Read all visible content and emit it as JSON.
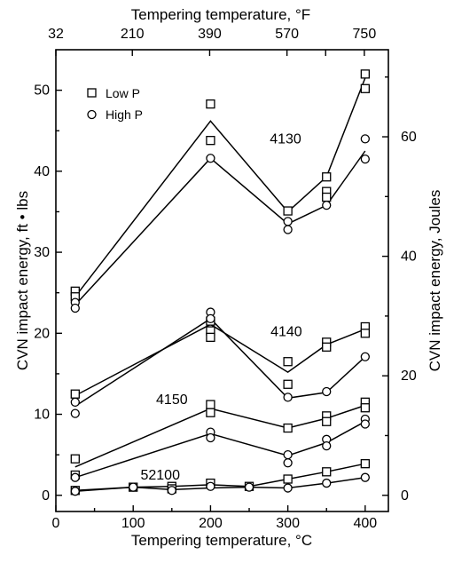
{
  "chart_data": {
    "type": "scatter",
    "xlabel": "Tempering temperature, °C",
    "x2label": "Tempering temperature, °F",
    "ylabel": "CVN impact energy, ft • lbs",
    "y2label": "CVN impact energy, Joules",
    "xlim": [
      0,
      430
    ],
    "ylim": [
      -2,
      55
    ],
    "y2lim": [
      -2.71,
      74.57
    ],
    "xticks": [
      0,
      100,
      200,
      300,
      400
    ],
    "xtick_labels": [
      "0",
      "100",
      "200",
      "300",
      "400"
    ],
    "yticks": [
      0,
      10,
      20,
      30,
      40,
      50
    ],
    "ytick_labels": [
      "0",
      "10",
      "20",
      "30",
      "40",
      "50"
    ],
    "x2ticks": [
      32,
      210,
      390,
      570,
      660,
      750
    ],
    "x2tick_labels": [
      "32",
      "210",
      "390",
      "570",
      "",
      "750"
    ],
    "y2ticks": [
      0,
      20,
      40,
      60
    ],
    "y2tick_labels": [
      "0",
      "20",
      "40",
      "60"
    ],
    "grid": false,
    "legend": {
      "position": "top-left",
      "entries": [
        {
          "label": "Low P",
          "marker": "square"
        },
        {
          "label": "High P",
          "marker": "circle"
        }
      ]
    },
    "steels": [
      {
        "name": "4130",
        "label_pos": [
          297,
          44
        ],
        "low_p": {
          "points": [
            [
              25,
              25.2
            ],
            [
              25,
              24.5
            ],
            [
              200,
              48.3
            ],
            [
              200,
              43.8
            ],
            [
              300,
              35.1
            ],
            [
              350,
              39.3
            ],
            [
              350,
              37.5
            ],
            [
              350,
              36.8
            ],
            [
              400,
              52.0
            ],
            [
              400,
              50.2
            ]
          ],
          "line": [
            [
              25,
              24.5
            ],
            [
              200,
              46.2
            ],
            [
              300,
              35.0
            ],
            [
              350,
              39.3
            ],
            [
              400,
              51.5
            ]
          ]
        },
        "high_p": {
          "points": [
            [
              25,
              23.8
            ],
            [
              25,
              23.1
            ],
            [
              200,
              41.6
            ],
            [
              300,
              33.8
            ],
            [
              300,
              32.8
            ],
            [
              350,
              35.8
            ],
            [
              400,
              44.0
            ],
            [
              400,
              41.5
            ]
          ],
          "line": [
            [
              25,
              23.5
            ],
            [
              200,
              41.6
            ],
            [
              300,
              33.5
            ],
            [
              350,
              35.8
            ],
            [
              400,
              42.5
            ]
          ]
        }
      },
      {
        "name": "4140",
        "label_pos": [
          298,
          20.2
        ],
        "low_p": {
          "points": [
            [
              25,
              12.5
            ],
            [
              200,
              21.5
            ],
            [
              200,
              20.3
            ],
            [
              200,
              19.5
            ],
            [
              300,
              16.5
            ],
            [
              300,
              13.7
            ],
            [
              350,
              18.9
            ],
            [
              350,
              18.3
            ],
            [
              400,
              20.8
            ],
            [
              400,
              20.0
            ]
          ],
          "line": [
            [
              25,
              12.3
            ],
            [
              200,
              21.1
            ],
            [
              300,
              15.2
            ],
            [
              350,
              18.6
            ],
            [
              400,
              20.5
            ]
          ]
        },
        "high_p": {
          "points": [
            [
              25,
              11.5
            ],
            [
              25,
              10.1
            ],
            [
              200,
              22.6
            ],
            [
              200,
              21.8
            ],
            [
              300,
              12.1
            ],
            [
              350,
              12.8
            ],
            [
              400,
              17.1
            ]
          ],
          "line": [
            [
              25,
              11.0
            ],
            [
              200,
              21.8
            ],
            [
              300,
              12.0
            ],
            [
              350,
              12.7
            ],
            [
              400,
              17.1
            ]
          ]
        }
      },
      {
        "name": "4150",
        "label_pos": [
          150,
          11.8
        ],
        "low_p": {
          "points": [
            [
              25,
              4.5
            ],
            [
              25,
              2.5
            ],
            [
              200,
              11.2
            ],
            [
              200,
              10.2
            ],
            [
              300,
              8.3
            ],
            [
              350,
              9.8
            ],
            [
              350,
              9.1
            ],
            [
              400,
              11.5
            ],
            [
              400,
              10.8
            ]
          ],
          "line": [
            [
              25,
              3.5
            ],
            [
              200,
              10.7
            ],
            [
              300,
              8.3
            ],
            [
              350,
              9.5
            ],
            [
              400,
              11.1
            ]
          ]
        },
        "high_p": {
          "points": [
            [
              25,
              2.2
            ],
            [
              200,
              7.8
            ],
            [
              200,
              7.1
            ],
            [
              300,
              5.0
            ],
            [
              300,
              4.0
            ],
            [
              350,
              6.9
            ],
            [
              350,
              6.1
            ],
            [
              400,
              9.4
            ],
            [
              400,
              8.8
            ]
          ],
          "line": [
            [
              25,
              2.2
            ],
            [
              200,
              7.6
            ],
            [
              300,
              4.9
            ],
            [
              350,
              6.5
            ],
            [
              400,
              9.1
            ]
          ]
        }
      },
      {
        "name": "52100",
        "label_pos": [
          135,
          2.5
        ],
        "low_p": {
          "points": [
            [
              25,
              0.6
            ],
            [
              100,
              1.0
            ],
            [
              150,
              1.1
            ],
            [
              150,
              0.8
            ],
            [
              200,
              1.5
            ],
            [
              250,
              1.1
            ],
            [
              300,
              2.0
            ],
            [
              350,
              2.9
            ],
            [
              400,
              3.9
            ]
          ],
          "line": [
            [
              25,
              0.6
            ],
            [
              100,
              1.0
            ],
            [
              150,
              1.1
            ],
            [
              200,
              1.3
            ],
            [
              250,
              1.1
            ],
            [
              300,
              2.0
            ],
            [
              350,
              2.9
            ],
            [
              400,
              3.9
            ]
          ]
        },
        "high_p": {
          "points": [
            [
              25,
              0.5
            ],
            [
              100,
              1.0
            ],
            [
              150,
              0.6
            ],
            [
              200,
              1.1
            ],
            [
              250,
              1.0
            ],
            [
              300,
              0.9
            ],
            [
              350,
              1.5
            ],
            [
              400,
              2.2
            ]
          ],
          "line": [
            [
              25,
              0.5
            ],
            [
              100,
              1.0
            ],
            [
              150,
              0.7
            ],
            [
              200,
              0.9
            ],
            [
              250,
              1.0
            ],
            [
              300,
              0.9
            ],
            [
              350,
              1.5
            ],
            [
              400,
              2.2
            ]
          ]
        }
      }
    ]
  }
}
